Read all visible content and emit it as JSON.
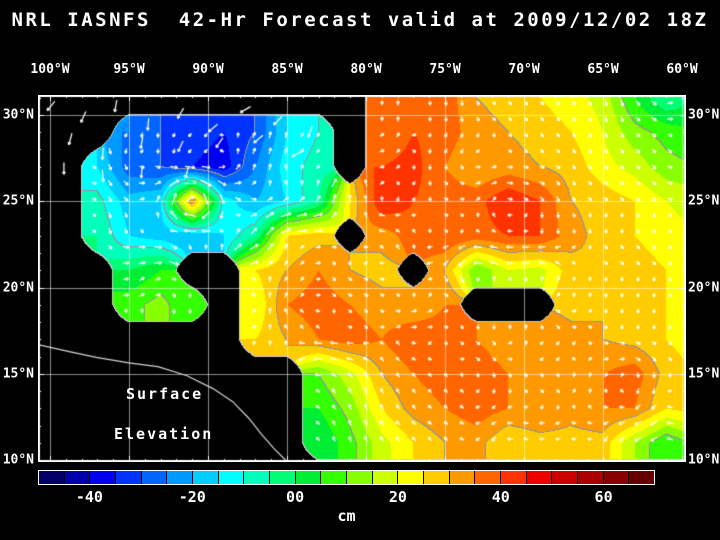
{
  "colors": {
    "background": "#000000",
    "text": "#ffffff",
    "grid": "rgba(255,255,255,0.55)",
    "coastline": "#c8c8c8",
    "contour": "#969696",
    "vector": "#ffffff"
  },
  "chart_data": {
    "type": "heatmap",
    "title": "NRL IASNFS  42-Hr Forecast valid at 2009/12/02 18Z",
    "variable_label": [
      "Surface",
      "Elevation"
    ],
    "unit": "cm",
    "lon_range": [
      -100.76,
      -59.75
    ],
    "lat_range": [
      31.15,
      9.9
    ],
    "lon_ticks": {
      "values": [
        -100,
        -95,
        -90,
        -85,
        -80,
        -75,
        -70,
        -65,
        -60
      ],
      "labels": [
        "100°W",
        "95°W",
        "90°W",
        "85°W",
        "80°W",
        "75°W",
        "70°W",
        "65°W",
        "60°W"
      ]
    },
    "lat_ticks": {
      "values": [
        30,
        25,
        20,
        15,
        10
      ],
      "labels": [
        "30°N",
        "25°N",
        "20°N",
        "15°N",
        "10°N"
      ]
    },
    "colorbar": {
      "min": -50,
      "max": 70,
      "step": 5,
      "tick_values": [
        -40,
        -20,
        0,
        20,
        40,
        60
      ],
      "tick_labels": [
        "-40",
        "-20",
        "00",
        "20",
        "40",
        "60"
      ],
      "unit": "cm",
      "colors": [
        "#000066",
        "#0000aa",
        "#0000ee",
        "#0033ff",
        "#0066ff",
        "#0099ff",
        "#00ccff",
        "#00ffff",
        "#00ffbb",
        "#00ff77",
        "#00ee33",
        "#33ff00",
        "#88ff00",
        "#ccff00",
        "#ffff00",
        "#ffcc00",
        "#ff9900",
        "#ff6600",
        "#ff3300",
        "#ee0000",
        "#cc0000",
        "#aa0000",
        "#880000",
        "#660000"
      ]
    },
    "grid": {
      "lon": [
        -101,
        -99,
        -97,
        -95,
        -93,
        -91,
        -89,
        -87,
        -85,
        -83,
        -81,
        -79,
        -77,
        -75,
        -73,
        -71,
        -69,
        -67,
        -65,
        -63,
        -61,
        -59
      ],
      "lat": [
        31,
        29,
        27,
        25,
        23,
        21,
        19,
        17,
        15,
        13,
        11,
        9
      ],
      "land_value": null,
      "values_cm": [
        [
          null,
          null,
          null,
          null,
          null,
          null,
          null,
          null,
          null,
          null,
          null,
          35,
          40,
          38,
          30,
          28,
          25,
          22,
          18,
          5,
          -5,
          0
        ],
        [
          null,
          null,
          null,
          -25,
          -30,
          -32,
          -35,
          -30,
          -15,
          -10,
          null,
          35,
          40,
          38,
          32,
          30,
          28,
          25,
          20,
          12,
          8,
          5
        ],
        [
          null,
          null,
          -15,
          -28,
          -30,
          -35,
          -38,
          -25,
          -12,
          -8,
          null,
          40,
          42,
          35,
          30,
          32,
          30,
          28,
          22,
          18,
          12,
          10
        ],
        [
          null,
          null,
          -8,
          -18,
          -15,
          35,
          -12,
          -20,
          -15,
          -5,
          25,
          45,
          40,
          38,
          38,
          45,
          40,
          30,
          28,
          25,
          20,
          18
        ],
        [
          null,
          null,
          -5,
          -15,
          -18,
          -20,
          -15,
          -5,
          25,
          28,
          null,
          32,
          38,
          40,
          38,
          40,
          40,
          32,
          28,
          25,
          22,
          20
        ],
        [
          null,
          null,
          null,
          0,
          5,
          null,
          null,
          25,
          30,
          35,
          30,
          28,
          null,
          30,
          10,
          20,
          18,
          28,
          30,
          28,
          25,
          22
        ],
        [
          null,
          null,
          null,
          8,
          12,
          5,
          null,
          20,
          35,
          38,
          35,
          32,
          30,
          35,
          null,
          null,
          null,
          28,
          30,
          28,
          25,
          25
        ],
        [
          null,
          null,
          null,
          null,
          null,
          null,
          null,
          25,
          30,
          35,
          38,
          35,
          40,
          38,
          35,
          30,
          35,
          32,
          30,
          28,
          25,
          22
        ],
        [
          null,
          null,
          null,
          null,
          null,
          null,
          null,
          null,
          null,
          10,
          18,
          30,
          35,
          38,
          40,
          35,
          32,
          30,
          35,
          38,
          28,
          25
        ],
        [
          null,
          null,
          null,
          null,
          null,
          null,
          null,
          null,
          null,
          5,
          12,
          25,
          32,
          35,
          38,
          35,
          35,
          32,
          35,
          35,
          25,
          28
        ],
        [
          null,
          null,
          null,
          null,
          null,
          null,
          null,
          null,
          null,
          0,
          8,
          18,
          25,
          30,
          32,
          25,
          28,
          28,
          28,
          15,
          5,
          12
        ],
        [
          null,
          null,
          null,
          null,
          null,
          null,
          null,
          null,
          null,
          null,
          null,
          null,
          null,
          null,
          null,
          null,
          null,
          null,
          null,
          null,
          null,
          null
        ]
      ]
    },
    "vectors": {
      "color": "#ffffff",
      "land_samples": [
        [
          0.02,
          0.03,
          130
        ],
        [
          0.07,
          0.06,
          115
        ],
        [
          0.12,
          0.03,
          100
        ],
        [
          0.17,
          0.08,
          95
        ],
        [
          0.22,
          0.05,
          120
        ],
        [
          0.27,
          0.09,
          140
        ],
        [
          0.32,
          0.04,
          150
        ],
        [
          0.37,
          0.07,
          135
        ],
        [
          0.42,
          0.1,
          110
        ],
        [
          0.05,
          0.12,
          105
        ],
        [
          0.1,
          0.16,
          95
        ],
        [
          0.16,
          0.13,
          100
        ],
        [
          0.22,
          0.14,
          115
        ],
        [
          0.28,
          0.13,
          125
        ],
        [
          0.34,
          0.12,
          140
        ],
        [
          0.4,
          0.16,
          150
        ],
        [
          0.04,
          0.2,
          90
        ],
        [
          0.1,
          0.22,
          85
        ],
        [
          0.16,
          0.21,
          95
        ],
        [
          0.23,
          0.21,
          105
        ]
      ]
    },
    "pacific_coastline": [
      [
        0,
        0.68
      ],
      [
        0.05,
        0.7
      ],
      [
        0.09,
        0.715
      ],
      [
        0.14,
        0.73
      ],
      [
        0.185,
        0.74
      ],
      [
        0.23,
        0.765
      ],
      [
        0.27,
        0.8
      ],
      [
        0.3,
        0.835
      ],
      [
        0.325,
        0.88
      ],
      [
        0.345,
        0.925
      ],
      [
        0.365,
        0.965
      ],
      [
        0.385,
        1.0
      ]
    ]
  }
}
